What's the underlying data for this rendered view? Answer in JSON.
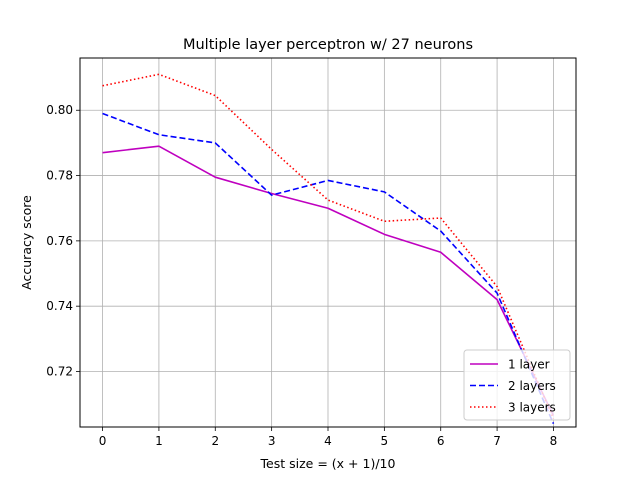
{
  "chart_data": {
    "type": "line",
    "title": "Multiple layer perceptron w/ 27 neurons",
    "xlabel": "Test size = (x + 1)/10",
    "ylabel": "Accuracy score",
    "x": [
      0,
      1,
      2,
      3,
      4,
      5,
      6,
      7,
      8
    ],
    "xlim": [
      -0.4,
      8.4
    ],
    "ylim": [
      0.703,
      0.816
    ],
    "xticks": [
      "0",
      "1",
      "2",
      "3",
      "4",
      "5",
      "6",
      "7",
      "8"
    ],
    "yticks": [
      0.72,
      0.74,
      0.76,
      0.78,
      0.8
    ],
    "ytick_labels": [
      "0.72",
      "0.74",
      "0.76",
      "0.78",
      "0.80"
    ],
    "grid": true,
    "legend_position": "lower-right",
    "series": [
      {
        "name": "1 layer",
        "color": "#bf00bf",
        "style": "solid",
        "values": [
          0.787,
          0.789,
          0.7795,
          0.7745,
          0.77,
          0.762,
          0.7565,
          0.742,
          0.7065
        ]
      },
      {
        "name": "2 layers",
        "color": "#0000ff",
        "style": "dashed",
        "values": [
          0.799,
          0.7925,
          0.79,
          0.774,
          0.7785,
          0.775,
          0.763,
          0.744,
          0.704
        ]
      },
      {
        "name": "3 layers",
        "color": "#ff0000",
        "style": "dotted",
        "values": [
          0.8075,
          0.811,
          0.8045,
          0.788,
          0.7725,
          0.766,
          0.767,
          0.746,
          0.7055
        ]
      }
    ]
  }
}
